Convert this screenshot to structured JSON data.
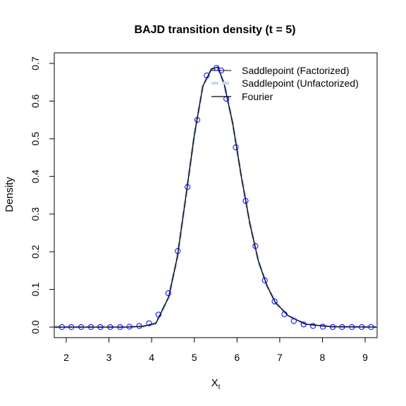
{
  "chart_data": {
    "type": "line",
    "title": "BAJD transition density (t = 5)",
    "xlabel": "X",
    "xlabel_subscript": "t",
    "ylabel": "Density",
    "xlim": [
      1.72,
      9.28
    ],
    "ylim": [
      -0.028,
      0.728
    ],
    "xticks": [
      "2",
      "3",
      "4",
      "5",
      "6",
      "7",
      "8",
      "9"
    ],
    "xtick_values": [
      2,
      3,
      4,
      5,
      6,
      7,
      8,
      9
    ],
    "yticks": [
      "0.0",
      "0.1",
      "0.2",
      "0.3",
      "0.4",
      "0.5",
      "0.6",
      "0.7"
    ],
    "ytick_values": [
      0,
      0.1,
      0.2,
      0.3,
      0.4,
      0.5,
      0.6,
      0.7
    ],
    "grid": false,
    "legend_position": "top-right",
    "series": [
      {
        "name": "Saddlepoint (Factorized)",
        "style": "points",
        "color": "#0000ff",
        "x": [
          1.9,
          2.12,
          2.35,
          2.58,
          2.8,
          3.03,
          3.26,
          3.48,
          3.71,
          3.94,
          4.16,
          4.39,
          4.61,
          4.84,
          5.07,
          5.29,
          5.52,
          5.75,
          5.97,
          6.2,
          6.43,
          6.65,
          6.88,
          7.11,
          7.33,
          7.56,
          7.78,
          8.01,
          8.24,
          8.46,
          8.69,
          8.92,
          9.14
        ],
        "y": [
          0.0,
          0.0,
          0.0,
          0.0,
          0.0,
          0.0,
          0.0,
          0.001,
          0.003,
          0.01,
          0.033,
          0.09,
          0.202,
          0.372,
          0.55,
          0.668,
          0.688,
          0.606,
          0.477,
          0.335,
          0.215,
          0.124,
          0.068,
          0.034,
          0.016,
          0.007,
          0.003,
          0.001,
          0.0,
          0.0,
          0.0,
          0.0,
          0.0
        ]
      },
      {
        "name": "Saddlepoint (Unfactorized)",
        "style": "dashed",
        "color": "#c8d7f5",
        "x": [
          1.72,
          3.4,
          3.8,
          4.1,
          4.4,
          4.6,
          4.8,
          5.0,
          5.2,
          5.4,
          5.55,
          5.7,
          5.9,
          6.1,
          6.3,
          6.5,
          6.7,
          6.9,
          7.2,
          7.6,
          8.2,
          9.28
        ],
        "y": [
          0.0,
          0.0,
          0.002,
          0.01,
          0.08,
          0.185,
          0.345,
          0.51,
          0.64,
          0.685,
          0.69,
          0.645,
          0.54,
          0.4,
          0.275,
          0.175,
          0.11,
          0.065,
          0.03,
          0.008,
          0.001,
          0.0
        ]
      },
      {
        "name": "Fourier",
        "style": "solid",
        "color": "#000000",
        "x": [
          1.72,
          3.4,
          3.8,
          4.1,
          4.4,
          4.6,
          4.8,
          5.0,
          5.2,
          5.4,
          5.55,
          5.7,
          5.9,
          6.1,
          6.3,
          6.5,
          6.7,
          6.9,
          7.2,
          7.6,
          8.2,
          9.28
        ],
        "y": [
          0.0,
          0.0,
          0.002,
          0.01,
          0.08,
          0.185,
          0.345,
          0.51,
          0.64,
          0.685,
          0.69,
          0.645,
          0.54,
          0.4,
          0.275,
          0.175,
          0.11,
          0.065,
          0.03,
          0.008,
          0.001,
          0.0
        ]
      }
    ]
  }
}
